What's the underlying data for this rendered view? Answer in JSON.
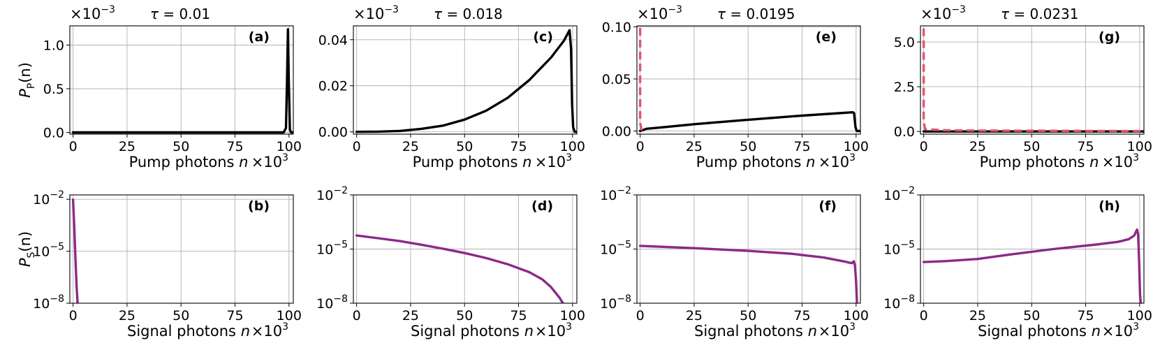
{
  "figure": {
    "multiplier_base": "×10",
    "y_multiplier_exp": "−3",
    "x_multiplier_exp": "3"
  },
  "chart_data": [
    {
      "type": "line",
      "panel": "a",
      "row": "pump",
      "tau_label": "τ = 0.01",
      "xlabel": "Pump photons n",
      "ylabel": "P_P(n)",
      "ylabel_main": "P",
      "ylabel_sub": "P",
      "ylabel_tail": "(n)",
      "ylim": [
        -0.02,
        1.22
      ],
      "yscale": "linear",
      "yticks": [
        0.0,
        0.5,
        1.0
      ],
      "ytick_labels": [
        "0.0",
        "0.5",
        "1.0"
      ],
      "xlim": [
        -1.5,
        102
      ],
      "xticks": [
        0,
        25,
        50,
        75,
        100
      ],
      "xtick_labels": [
        "0",
        "25",
        "50",
        "75",
        "100"
      ],
      "series": [
        {
          "name": "solid",
          "color": "#000000",
          "dash": "",
          "points": [
            [
              0,
              0
            ],
            [
              97.5,
              0
            ],
            [
              98.6,
              0.05
            ],
            [
              99.1,
              0.6
            ],
            [
              99.5,
              1.18
            ],
            [
              99.9,
              0.6
            ],
            [
              100.4,
              0.03
            ],
            [
              101,
              0
            ],
            [
              102,
              0
            ]
          ]
        }
      ]
    },
    {
      "type": "line",
      "panel": "b",
      "row": "signal",
      "xlabel": "Signal photons n",
      "ylabel": "P_S(n)",
      "ylabel_main": "P",
      "ylabel_sub": "S",
      "ylabel_tail": "(n)",
      "ylim": [
        -8,
        -1.75
      ],
      "yscale": "log10",
      "yticks": [
        -8,
        -5,
        -2
      ],
      "ytick_labels": [
        "10⁻⁸",
        "10⁻⁵",
        "10⁻²"
      ],
      "xlim": [
        -1.5,
        102
      ],
      "xticks": [
        0,
        25,
        50,
        75,
        100
      ],
      "xtick_labels": [
        "0",
        "25",
        "50",
        "75",
        "100"
      ],
      "series": [
        {
          "name": "solid",
          "color": "#8B2A86",
          "dash": "",
          "points": [
            [
              0,
              -2.02
            ],
            [
              0.6,
              -3.8
            ],
            [
              1.2,
              -5.7
            ],
            [
              1.7,
              -7.2
            ],
            [
              2.1,
              -8
            ]
          ]
        }
      ]
    },
    {
      "type": "line",
      "panel": "c",
      "row": "pump",
      "tau_label": "τ = 0.018",
      "xlabel": "Pump photons n",
      "ylabel": "",
      "ylim": [
        -0.001,
        0.046
      ],
      "yscale": "linear",
      "yticks": [
        0.0,
        0.02,
        0.04
      ],
      "ytick_labels": [
        "0.00",
        "0.02",
        "0.04"
      ],
      "xlim": [
        -1.5,
        102
      ],
      "xticks": [
        0,
        25,
        50,
        75,
        100
      ],
      "xtick_labels": [
        "0",
        "25",
        "50",
        "75",
        "100"
      ],
      "series": [
        {
          "name": "solid",
          "color": "#000000",
          "dash": "",
          "points": [
            [
              0,
              0
            ],
            [
              10,
              0.0001
            ],
            [
              20,
              0.0004
            ],
            [
              30,
              0.0013
            ],
            [
              40,
              0.0027
            ],
            [
              50,
              0.0053
            ],
            [
              60,
              0.0092
            ],
            [
              70,
              0.0148
            ],
            [
              80,
              0.0225
            ],
            [
              90,
              0.0322
            ],
            [
              96,
              0.0395
            ],
            [
              98.6,
              0.0441
            ],
            [
              99.3,
              0.036
            ],
            [
              99.8,
              0.012
            ],
            [
              100.3,
              0.002
            ],
            [
              101,
              0
            ],
            [
              102,
              0
            ]
          ]
        }
      ]
    },
    {
      "type": "line",
      "panel": "d",
      "row": "signal",
      "xlabel": "Signal photons n",
      "ylabel": "",
      "ylim": [
        -8,
        -2
      ],
      "yscale": "log10",
      "yticks": [
        -8,
        -5,
        -2
      ],
      "ytick_labels": [
        "10⁻⁸",
        "10⁻⁵",
        "10⁻²"
      ],
      "xlim": [
        -1.5,
        102
      ],
      "xticks": [
        0,
        25,
        50,
        75,
        100
      ],
      "xtick_labels": [
        "0",
        "25",
        "50",
        "75",
        "100"
      ],
      "series": [
        {
          "name": "solid",
          "color": "#8B2A86",
          "dash": "",
          "points": [
            [
              0,
              -4.25
            ],
            [
              10,
              -4.4
            ],
            [
              20,
              -4.56
            ],
            [
              30,
              -4.76
            ],
            [
              40,
              -4.98
            ],
            [
              50,
              -5.22
            ],
            [
              60,
              -5.5
            ],
            [
              70,
              -5.84
            ],
            [
              80,
              -6.28
            ],
            [
              86,
              -6.68
            ],
            [
              90,
              -7.1
            ],
            [
              94,
              -7.7
            ],
            [
              95.5,
              -8
            ]
          ]
        }
      ]
    },
    {
      "type": "line",
      "panel": "e",
      "row": "pump",
      "tau_label": "τ = 0.0195",
      "xlabel": "Pump photons n",
      "ylabel": "",
      "ylim": [
        -0.003,
        0.101
      ],
      "yscale": "linear",
      "yticks": [
        0.0,
        0.05,
        0.1
      ],
      "ytick_labels": [
        "0.00",
        "0.05",
        "0.10"
      ],
      "xlim": [
        -1.5,
        102
      ],
      "xticks": [
        0,
        25,
        50,
        75,
        100
      ],
      "xtick_labels": [
        "0",
        "25",
        "50",
        "75",
        "100"
      ],
      "series": [
        {
          "name": "solid",
          "color": "#000000",
          "dash": "",
          "points": [
            [
              0,
              0
            ],
            [
              3,
              0.0022
            ],
            [
              10,
              0.0035
            ],
            [
              25,
              0.0065
            ],
            [
              50,
              0.0108
            ],
            [
              75,
              0.0148
            ],
            [
              98.5,
              0.018
            ],
            [
              99.1,
              0.017
            ],
            [
              99.7,
              0.004
            ],
            [
              100.3,
              0
            ],
            [
              102,
              0
            ]
          ]
        },
        {
          "name": "dashed",
          "color": "#E05570",
          "dash": "11,6",
          "points": [
            [
              0,
              0.099
            ],
            [
              0,
              0.008
            ],
            [
              0.5,
              0.002
            ],
            [
              1.2,
              0
            ]
          ]
        }
      ]
    },
    {
      "type": "line",
      "panel": "f",
      "row": "signal",
      "xlabel": "Signal photons n",
      "ylabel": "",
      "ylim": [
        -8,
        -2
      ],
      "yscale": "log10",
      "yticks": [
        -8,
        -5,
        -2
      ],
      "ytick_labels": [
        "10⁻⁸",
        "10⁻⁵",
        "10⁻²"
      ],
      "xlim": [
        -1.5,
        102
      ],
      "xticks": [
        0,
        25,
        50,
        75,
        100
      ],
      "xtick_labels": [
        "0",
        "25",
        "50",
        "75",
        "100"
      ],
      "series": [
        {
          "name": "solid",
          "color": "#8B2A86",
          "dash": "",
          "points": [
            [
              0,
              -4.82
            ],
            [
              25,
              -4.95
            ],
            [
              50,
              -5.1
            ],
            [
              70,
              -5.26
            ],
            [
              85,
              -5.47
            ],
            [
              95,
              -5.7
            ],
            [
              98,
              -5.78
            ],
            [
              99,
              -5.68
            ],
            [
              99.5,
              -5.95
            ],
            [
              100,
              -6.8
            ],
            [
              100.4,
              -8
            ]
          ]
        }
      ]
    },
    {
      "type": "line",
      "panel": "g",
      "row": "pump",
      "tau_label": "τ = 0.0231",
      "xlabel": "Pump photons n",
      "ylabel": "",
      "ylim": [
        -0.15,
        5.9
      ],
      "yscale": "linear",
      "yticks": [
        0.0,
        2.5,
        5.0
      ],
      "ytick_labels": [
        "0.0",
        "2.5",
        "5.0"
      ],
      "xlim": [
        -1.5,
        102
      ],
      "xticks": [
        0,
        25,
        50,
        75,
        100
      ],
      "xtick_labels": [
        "0",
        "25",
        "50",
        "75",
        "100"
      ],
      "series": [
        {
          "name": "solid",
          "color": "#000000",
          "dash": "",
          "points": [
            [
              0,
              0
            ],
            [
              102,
              0
            ]
          ]
        },
        {
          "name": "dashed",
          "color": "#E05570",
          "dash": "11,6",
          "points": [
            [
              0,
              5.75
            ],
            [
              0,
              0.5
            ],
            [
              0.7,
              0.12
            ],
            [
              10,
              0.07
            ],
            [
              25,
              0.05
            ],
            [
              50,
              0.04
            ],
            [
              75,
              0.03
            ],
            [
              102,
              0.02
            ]
          ]
        }
      ]
    },
    {
      "type": "line",
      "panel": "h",
      "row": "signal",
      "xlabel": "Signal photons n",
      "ylabel": "",
      "ylim": [
        -8,
        -2
      ],
      "yscale": "log10",
      "yticks": [
        -8,
        -5,
        -2
      ],
      "ytick_labels": [
        "10⁻⁸",
        "10⁻⁵",
        "10⁻²"
      ],
      "xlim": [
        -1.5,
        102
      ],
      "xticks": [
        0,
        25,
        50,
        75,
        100
      ],
      "xtick_labels": [
        "0",
        "25",
        "50",
        "75",
        "100"
      ],
      "series": [
        {
          "name": "solid",
          "color": "#8B2A86",
          "dash": "",
          "points": [
            [
              0,
              -5.72
            ],
            [
              10,
              -5.67
            ],
            [
              25,
              -5.55
            ],
            [
              40,
              -5.3
            ],
            [
              60,
              -5
            ],
            [
              80,
              -4.75
            ],
            [
              90,
              -4.6
            ],
            [
              95,
              -4.45
            ],
            [
              97.5,
              -4.25
            ],
            [
              98.8,
              -3.92
            ],
            [
              99.3,
              -4.2
            ],
            [
              99.8,
              -5.8
            ],
            [
              100.2,
              -7.5
            ],
            [
              100.5,
              -8
            ]
          ]
        }
      ]
    }
  ]
}
